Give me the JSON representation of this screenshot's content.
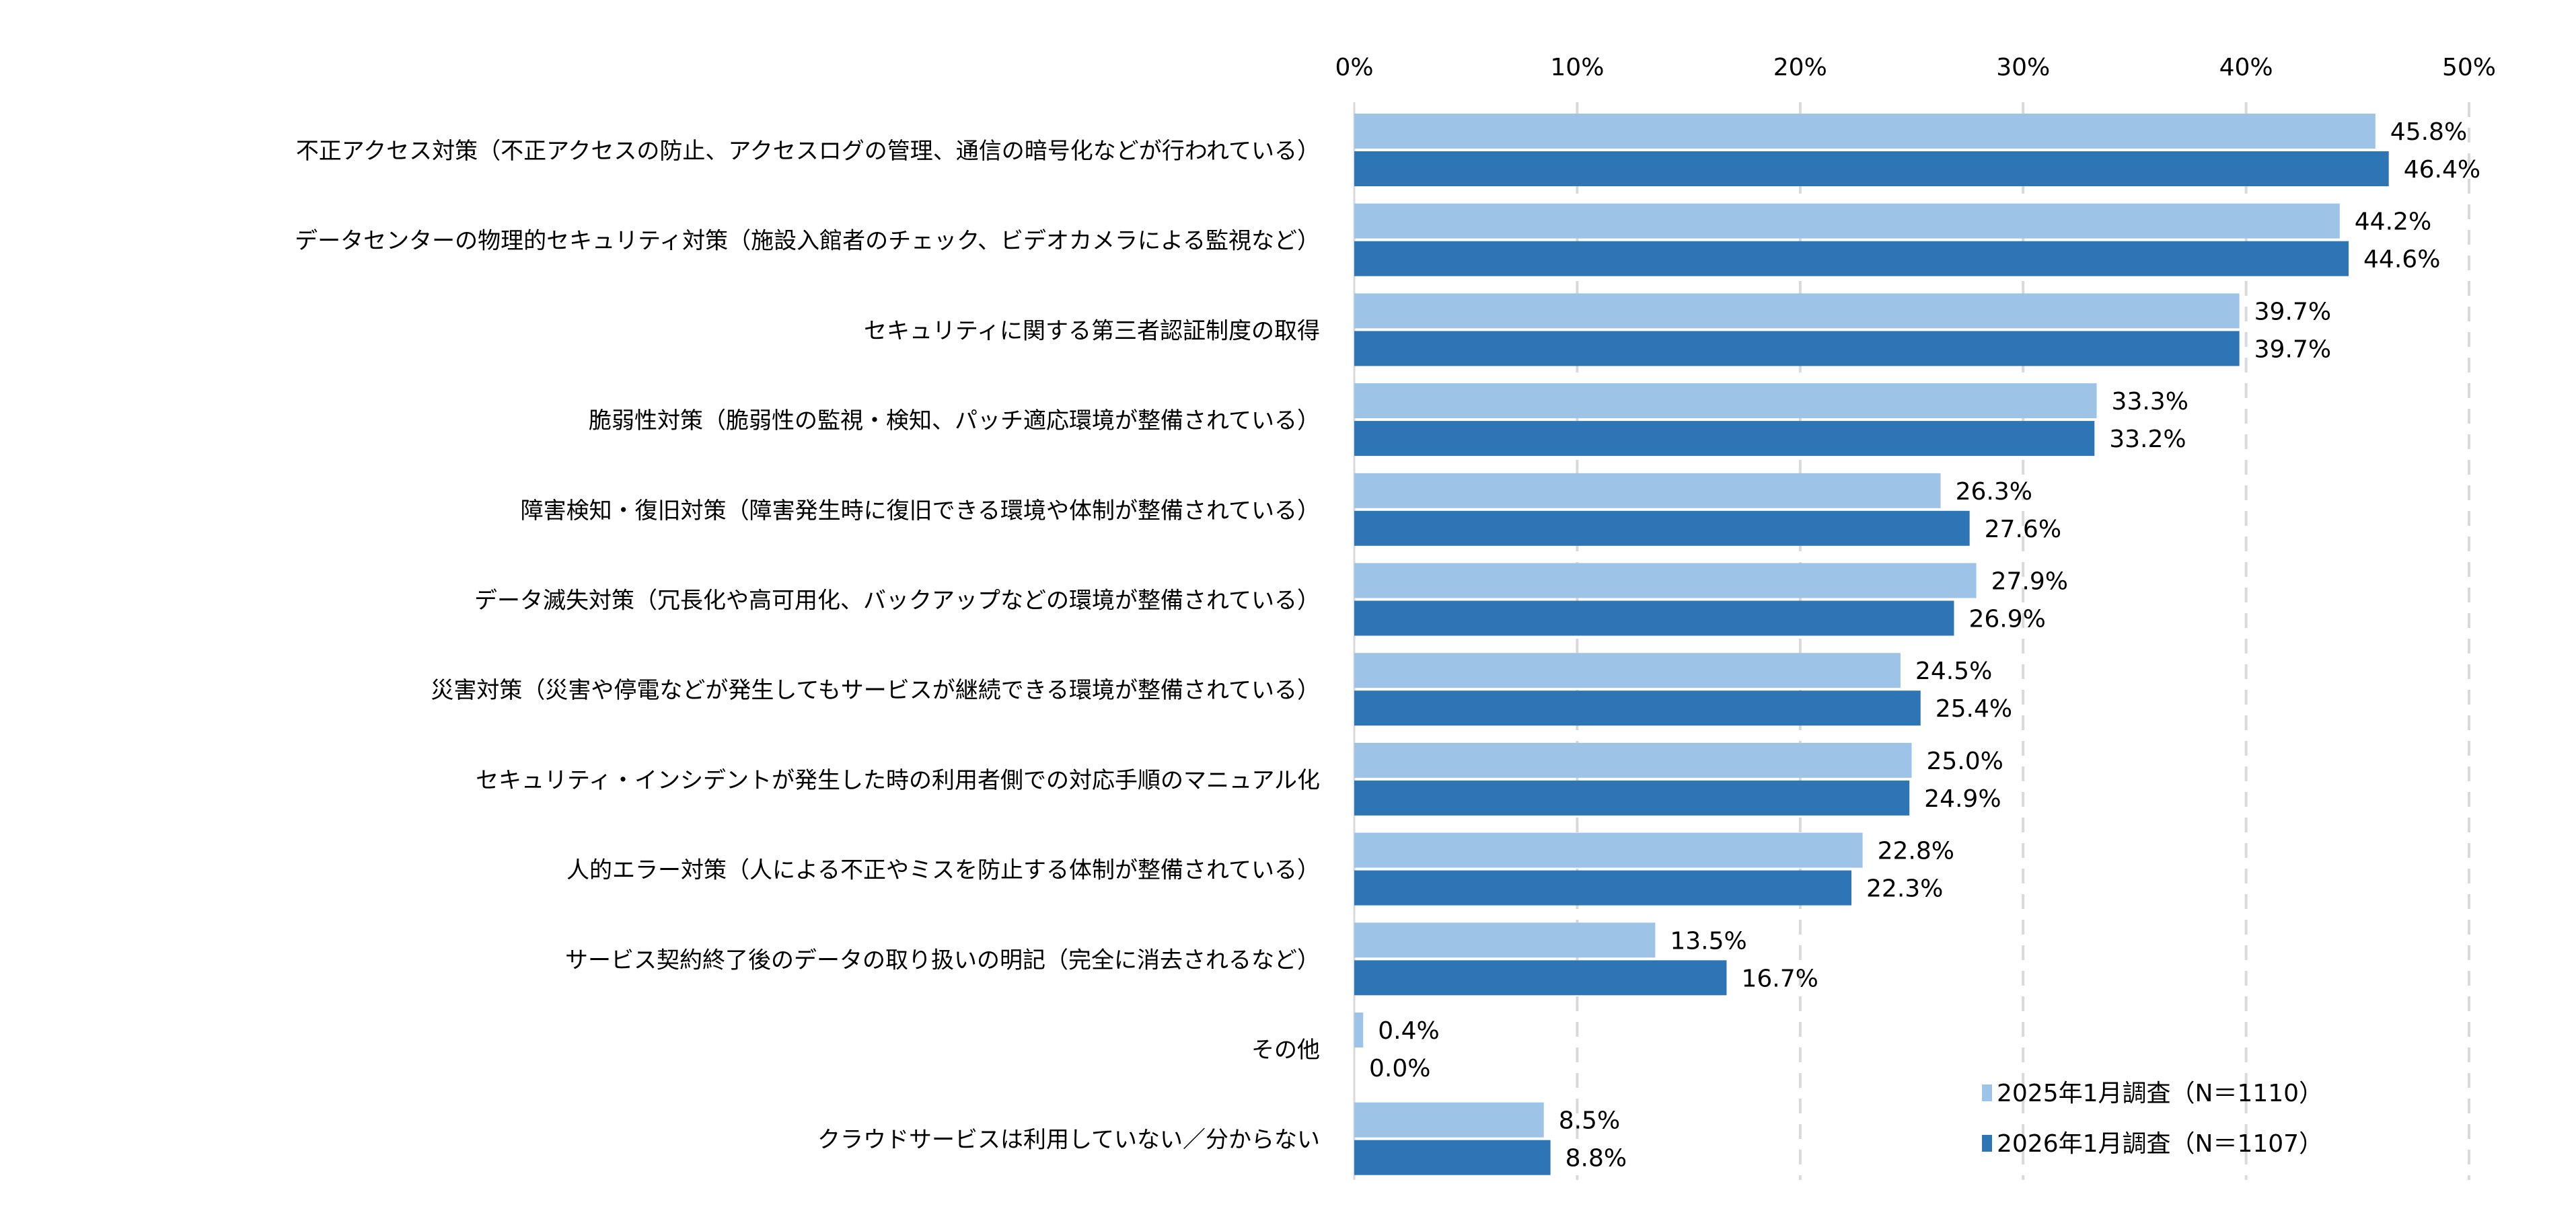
{
  "chart_data": {
    "type": "bar",
    "orientation": "horizontal",
    "xlim": [
      0,
      50
    ],
    "x_ticks": [
      "0%",
      "10%",
      "20%",
      "30%",
      "40%",
      "50%"
    ],
    "grid": "vertical dashed",
    "legend_position": "bottom-right",
    "categories": [
      "不正アクセス対策（不正アクセスの防止、アクセスログの管理、通信の暗号化などが行われている）",
      "データセンターの物理的セキュリティ対策（施設入館者のチェック、ビデオカメラによる監視など）",
      "セキュリティに関する第三者認証制度の取得",
      "脆弱性対策（脆弱性の監視・検知、パッチ適応環境が整備されている）",
      "障害検知・復旧対策（障害発生時に復旧できる環境や体制が整備されている）",
      "データ滅失対策（冗長化や高可用化、バックアップなどの環境が整備されている）",
      "災害対策（災害や停電などが発生してもサービスが継続できる環境が整備されている）",
      "セキュリティ・インシデントが発生した時の利用者側での対応手順のマニュアル化",
      "人的エラー対策（人による不正やミスを防止する体制が整備されている）",
      "サービス契約終了後のデータの取り扱いの明記（完全に消去されるなど）",
      "その他",
      "クラウドサービスは利用していない／分からない"
    ],
    "series": [
      {
        "name": "2025年1月調査（N＝1110）",
        "color": "#9DC3E6",
        "values": [
          45.8,
          44.2,
          39.7,
          33.3,
          26.3,
          27.9,
          24.5,
          25.0,
          22.8,
          13.5,
          0.4,
          8.5
        ],
        "labels": [
          "45.8%",
          "44.2%",
          "39.7%",
          "33.3%",
          "26.3%",
          "27.9%",
          "24.5%",
          "25.0%",
          "22.8%",
          "13.5%",
          "0.4%",
          "8.5%"
        ]
      },
      {
        "name": "2026年1月調査（N＝1107）",
        "color": "#2E75B6",
        "values": [
          46.4,
          44.6,
          39.7,
          33.2,
          27.6,
          26.9,
          25.4,
          24.9,
          22.3,
          16.7,
          0.0,
          8.8
        ],
        "labels": [
          "46.4%",
          "44.6%",
          "39.7%",
          "33.2%",
          "27.6%",
          "26.9%",
          "25.4%",
          "24.9%",
          "22.3%",
          "16.7%",
          "0.0%",
          "8.8%"
        ]
      }
    ]
  }
}
